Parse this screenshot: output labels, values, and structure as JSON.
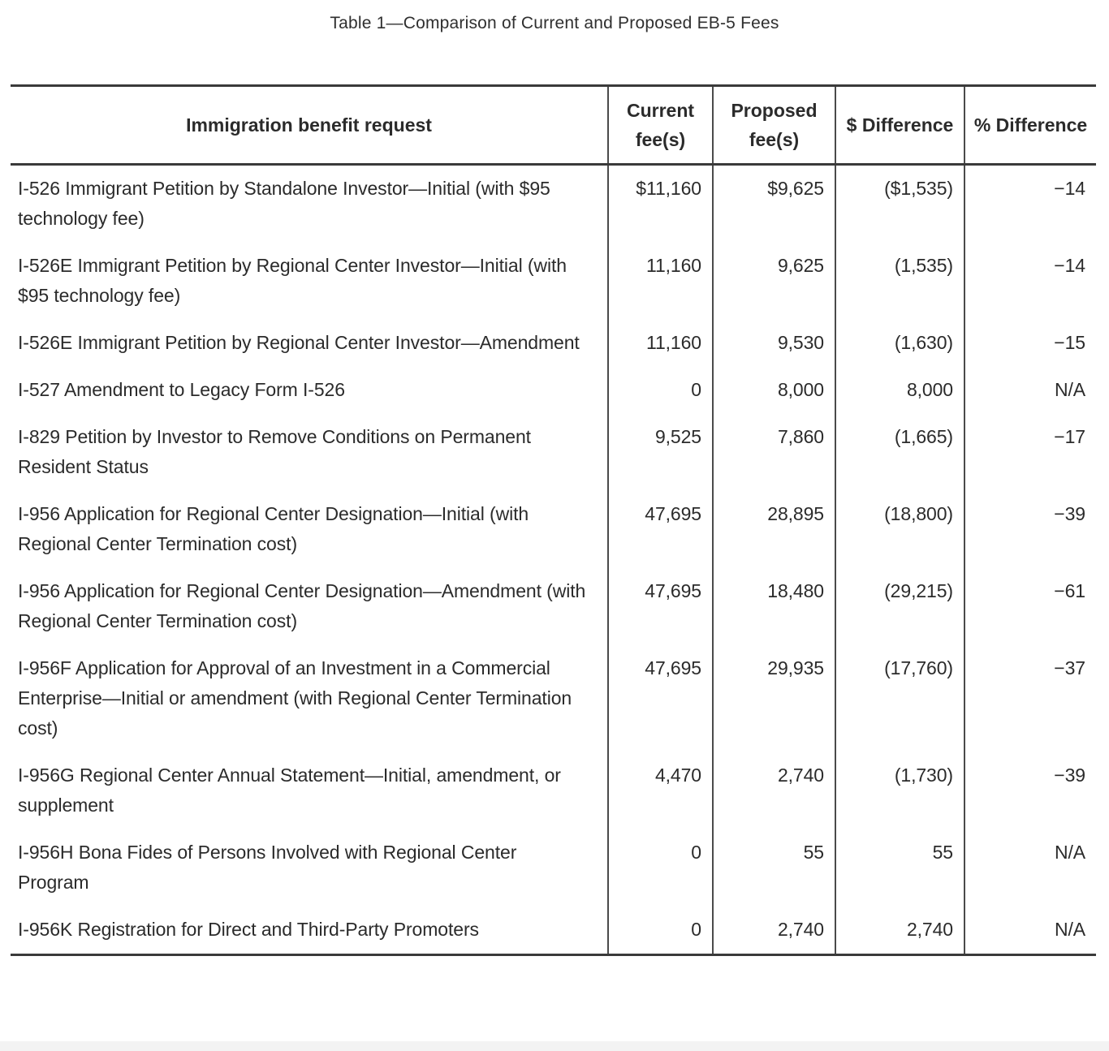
{
  "title": "Table 1—Comparison of Current and Proposed EB-5 Fees",
  "colors": {
    "text": "#2b2b2b",
    "horizontal_rule": "#3a3a3a",
    "grid_line": "#4a4a4a",
    "page_background": "#ffffff",
    "bottom_strip": "#f3f3f3"
  },
  "table": {
    "headers": [
      "Immigration benefit request",
      "Current fee(s)",
      "Proposed fee(s)",
      "$ Difference",
      "% Difference"
    ],
    "rows": [
      {
        "label": "I-526 Immigrant Petition by Standalone Investor—Initial (with $95 technology fee)",
        "current": "$11,160",
        "proposed": "$9,625",
        "dollar_diff": "($1,535)",
        "percent_diff": "−14"
      },
      {
        "label": "I-526E Immigrant Petition by Regional Center Investor—Initial (with $95 technology fee)",
        "current": "11,160",
        "proposed": "9,625",
        "dollar_diff": "(1,535)",
        "percent_diff": "−14"
      },
      {
        "label": "I-526E Immigrant Petition by Regional Center Investor—Amendment",
        "current": "11,160",
        "proposed": "9,530",
        "dollar_diff": "(1,630)",
        "percent_diff": "−15"
      },
      {
        "label": "I-527 Amendment to Legacy Form I-526",
        "current": "0",
        "proposed": "8,000",
        "dollar_diff": "8,000",
        "percent_diff": "N/A"
      },
      {
        "label": "I-829 Petition by Investor to Remove Conditions on Permanent Resident Status",
        "current": "9,525",
        "proposed": "7,860",
        "dollar_diff": "(1,665)",
        "percent_diff": "−17"
      },
      {
        "label": "I-956 Application for Regional Center Designation—Initial (with Regional Center Termination cost)",
        "current": "47,695",
        "proposed": "28,895",
        "dollar_diff": "(18,800)",
        "percent_diff": "−39"
      },
      {
        "label": "I-956 Application for Regional Center Designation—Amendment (with Regional Center Termination cost)",
        "current": "47,695",
        "proposed": "18,480",
        "dollar_diff": "(29,215)",
        "percent_diff": "−61"
      },
      {
        "label": "I-956F Application for Approval of an Investment in a Commercial Enterprise—Initial or amendment (with Regional Center Termination cost)",
        "current": "47,695",
        "proposed": "29,935",
        "dollar_diff": "(17,760)",
        "percent_diff": "−37"
      },
      {
        "label": "I-956G Regional Center Annual Statement—Initial, amendment, or supplement",
        "current": "4,470",
        "proposed": "2,740",
        "dollar_diff": "(1,730)",
        "percent_diff": "−39"
      },
      {
        "label": "I-956H Bona Fides of Persons Involved with Regional Center Program",
        "current": "0",
        "proposed": "55",
        "dollar_diff": "55",
        "percent_diff": "N/A"
      },
      {
        "label": "I-956K Registration for Direct and Third-Party Promoters",
        "current": "0",
        "proposed": "2,740",
        "dollar_diff": "2,740",
        "percent_diff": "N/A"
      }
    ]
  }
}
